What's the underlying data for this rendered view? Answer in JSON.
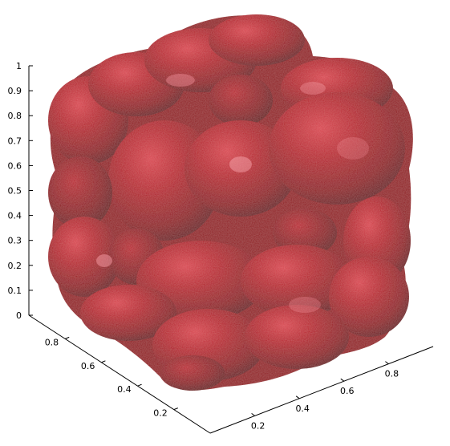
{
  "chart_data": {
    "type": "surface",
    "subtype": "3d-isosurface",
    "title": "",
    "xlabel": "",
    "ylabel": "",
    "zlabel": "",
    "xlim": [
      0,
      1
    ],
    "ylim": [
      0,
      1
    ],
    "zlim": [
      0,
      1
    ],
    "z_ticks": [
      "0",
      "0.1",
      "0.2",
      "0.3",
      "0.4",
      "0.5",
      "0.6",
      "0.7",
      "0.8",
      "0.9",
      "1"
    ],
    "y_ticks": [
      "0.8",
      "0.6",
      "0.4",
      "0.2"
    ],
    "x_ticks": [
      "0.2",
      "0.4",
      "0.6",
      "0.8"
    ],
    "grid": false,
    "surface_color": "#a8121f",
    "description_shape": "lumpy cube made of 3x3x3 rounded blobs"
  }
}
